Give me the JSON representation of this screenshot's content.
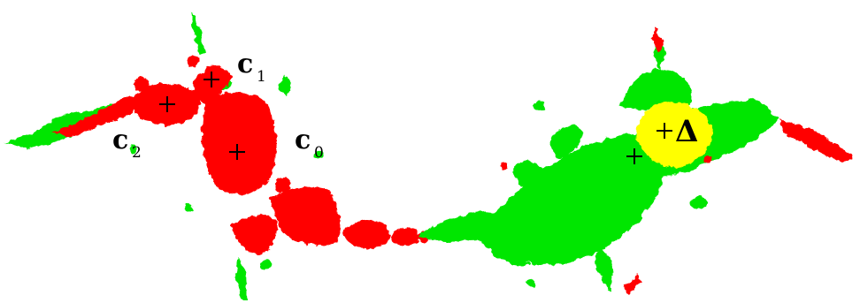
{
  "colors": {
    "background": "#ffffff",
    "red_region": "#ff0000",
    "green_region": "#00e600",
    "yellow_region": "#ffff00",
    "marker": "#000000"
  },
  "labels": {
    "c0": {
      "base": "c",
      "sub": "0"
    },
    "c1": {
      "base": "c",
      "sub": "1"
    },
    "c2": {
      "base": "c",
      "sub": "2"
    },
    "delta": "Δ"
  },
  "markers": [
    "c0",
    "c1",
    "c2",
    "delta",
    "green-center"
  ]
}
